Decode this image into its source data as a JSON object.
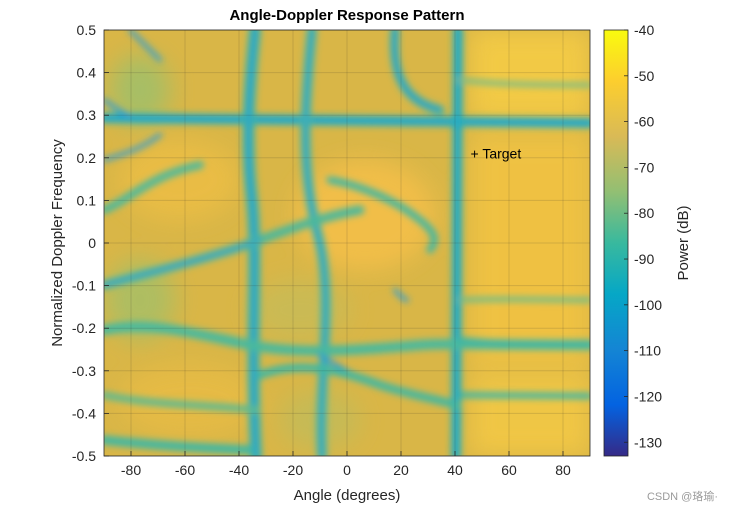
{
  "chart_data": {
    "type": "heatmap",
    "title": "Angle-Doppler Response Pattern",
    "xlabel": "Angle (degrees)",
    "ylabel": "Normalized Doppler Frequency",
    "xlim": [
      -90,
      90
    ],
    "ylim": [
      -0.5,
      0.5
    ],
    "xticks": [
      -80,
      -60,
      -40,
      -20,
      0,
      20,
      40,
      60,
      80
    ],
    "yticks": [
      -0.5,
      -0.4,
      -0.3,
      -0.2,
      -0.1,
      0,
      0.1,
      0.2,
      0.3,
      0.4,
      0.5
    ],
    "grid": true,
    "colormap": "parula",
    "colorbar": {
      "label": "Power (dB)",
      "range": [
        -133,
        -40
      ],
      "ticks": [
        -40,
        -50,
        -60,
        -70,
        -80,
        -90,
        -100,
        -110,
        -120,
        -130
      ]
    },
    "clutter_ridge_doppler": 0.275,
    "null_angles": [
      -37,
      -15,
      45
    ],
    "annotations": [
      {
        "text": "+ Target",
        "x": 45,
        "y": 0.21
      }
    ],
    "colors": {
      "high": "#f9d33c",
      "mid": "#33b7a0",
      "low": "#1f88d8",
      "deep": "#352a87"
    }
  },
  "watermark": "CSDN @珞瑜·"
}
